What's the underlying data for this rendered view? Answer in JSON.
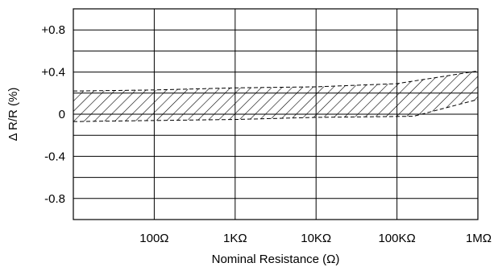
{
  "chart_data": {
    "type": "area",
    "title": "",
    "xlabel": "Nominal Resistance (Ω)",
    "ylabel": "Δ R/R (%)",
    "x_scale": "log",
    "xlim": [
      10,
      1000000
    ],
    "ylim": [
      -1.0,
      1.0
    ],
    "x_ticks": [
      {
        "value": 100,
        "label": "100Ω"
      },
      {
        "value": 1000,
        "label": "1KΩ"
      },
      {
        "value": 10000,
        "label": "10KΩ"
      },
      {
        "value": 100000,
        "label": "100KΩ"
      },
      {
        "value": 1000000,
        "label": "1MΩ"
      }
    ],
    "y_ticks": [
      {
        "value": 0.8,
        "label": "+0.8"
      },
      {
        "value": 0.4,
        "label": "+0.4"
      },
      {
        "value": 0,
        "label": "0"
      },
      {
        "value": -0.4,
        "label": "-0.4"
      },
      {
        "value": -0.8,
        "label": "-0.8"
      }
    ],
    "y_gridlines": [
      1.0,
      0.8,
      0.6,
      0.4,
      0.2,
      0,
      -0.2,
      -0.4,
      -0.6,
      -0.8,
      -1.0
    ],
    "grid": true,
    "series": [
      {
        "upper": [
          {
            "x": 10,
            "y": 0.22
          },
          {
            "x": 100,
            "y": 0.23
          },
          {
            "x": 1000,
            "y": 0.25
          },
          {
            "x": 10000,
            "y": 0.26
          },
          {
            "x": 100000,
            "y": 0.29
          },
          {
            "x": 1000000,
            "y": 0.41
          }
        ],
        "lower": [
          {
            "x": 10,
            "y": -0.07
          },
          {
            "x": 100,
            "y": -0.06
          },
          {
            "x": 1000,
            "y": -0.05
          },
          {
            "x": 10000,
            "y": -0.03
          },
          {
            "x": 160000,
            "y": -0.02
          },
          {
            "x": 1000000,
            "y": 0.14
          }
        ]
      }
    ]
  }
}
